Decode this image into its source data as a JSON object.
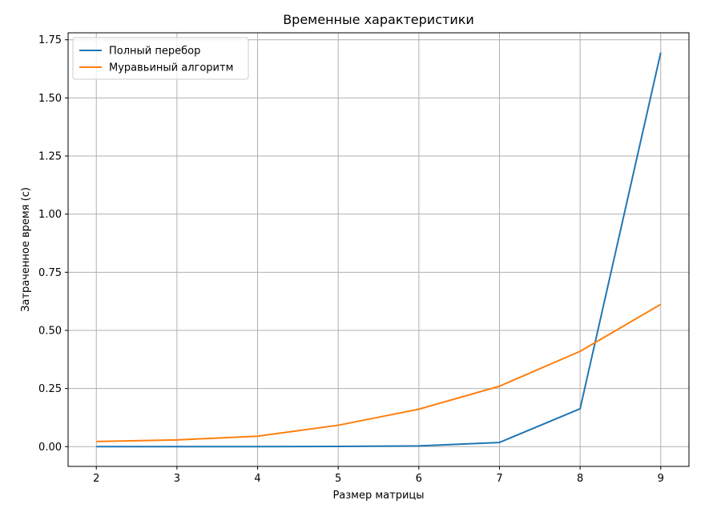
{
  "chart_data": {
    "type": "line",
    "title": "Временные характеристики",
    "xlabel": "Размер матрицы",
    "ylabel": "Затраченное время (с)",
    "x": [
      2,
      3,
      4,
      5,
      6,
      7,
      8,
      9
    ],
    "xlim": [
      1.65,
      9.35
    ],
    "ylim": [
      -0.085,
      1.78
    ],
    "xticks": [
      2,
      3,
      4,
      5,
      6,
      7,
      8,
      9
    ],
    "yticks": [
      0.0,
      0.25,
      0.5,
      0.75,
      1.0,
      1.25,
      1.5,
      1.75
    ],
    "ytick_labels": [
      "0.00",
      "0.25",
      "0.50",
      "0.75",
      "1.00",
      "1.25",
      "1.50",
      "1.75"
    ],
    "grid": true,
    "legend_position": "top-left",
    "series": [
      {
        "name": "Полный перебор",
        "color": "#1f77b4",
        "values": [
          0.0,
          0.0,
          0.0,
          0.001,
          0.003,
          0.018,
          0.163,
          1.695
        ]
      },
      {
        "name": "Муравьиный алгоритм",
        "color": "#ff7f0e",
        "values": [
          0.022,
          0.029,
          0.045,
          0.092,
          0.161,
          0.26,
          0.41,
          0.612
        ]
      }
    ]
  }
}
